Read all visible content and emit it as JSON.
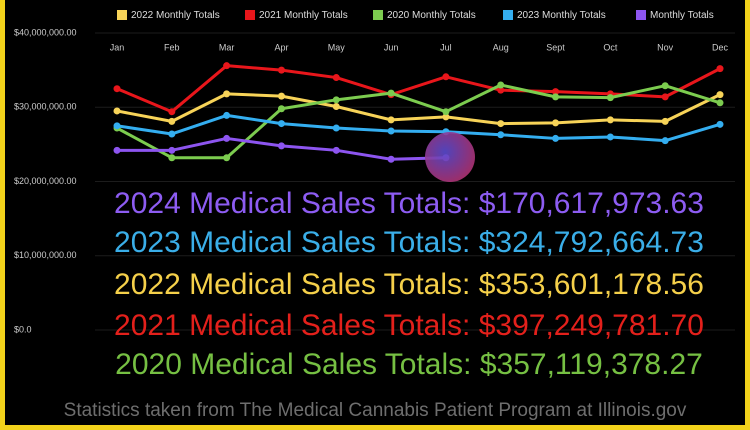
{
  "chart_data": {
    "type": "line",
    "categories": [
      "Jan",
      "Feb",
      "Mar",
      "Apr",
      "May",
      "Jun",
      "Jul",
      "Aug",
      "Sept",
      "Oct",
      "Nov",
      "Dec"
    ],
    "series": [
      {
        "name": "2022 Monthly Totals",
        "color": "#f7d358",
        "values": [
          29500000,
          28100000,
          31800000,
          31500000,
          30100000,
          28300000,
          28700000,
          27800000,
          27900000,
          28300000,
          28100000,
          31700000
        ]
      },
      {
        "name": "2021 Monthly Totals",
        "color": "#e8161b",
        "values": [
          32500000,
          29400000,
          35600000,
          35000000,
          34000000,
          31700000,
          34100000,
          32300000,
          32100000,
          31800000,
          31400000,
          35200000
        ]
      },
      {
        "name": "2020 Monthly Totals",
        "color": "#7ccc4f",
        "values": [
          27200000,
          23200000,
          23200000,
          29800000,
          31000000,
          31900000,
          29400000,
          33000000,
          31400000,
          31300000,
          32900000,
          30600000
        ]
      },
      {
        "name": "2023 Monthly Totals",
        "color": "#34aef0",
        "values": [
          27500000,
          26400000,
          28900000,
          27800000,
          27200000,
          26800000,
          26700000,
          26300000,
          25800000,
          26000000,
          25500000,
          27700000
        ]
      },
      {
        "name": "Monthly Totals",
        "color": "#8d55f0",
        "values": [
          24200000,
          24200000,
          25800000,
          24800000,
          24200000,
          23000000,
          23200000,
          null,
          null,
          null,
          null,
          null
        ]
      }
    ],
    "ylim": [
      0,
      40000000
    ],
    "yticks": [
      {
        "value": 0,
        "label": "$0.0"
      },
      {
        "value": 10000000,
        "label": "$10,000,000.00"
      },
      {
        "value": 20000000,
        "label": "$20,000,000.00"
      },
      {
        "value": 30000000,
        "label": "$30,000,000.00"
      },
      {
        "value": 40000000,
        "label": "$40,000,000.00"
      }
    ],
    "grid": true,
    "legend": "top",
    "annotations": [
      {
        "text": "2024 Medical Sales Totals: $170,617,973.63",
        "color": "#8d5cf2"
      },
      {
        "text": "2023 Medical Sales Totals: $324,792,664.73",
        "color": "#3aaee8"
      },
      {
        "text": "2022 Medical Sales Totals: $353,601,178.56",
        "color": "#f5d04a"
      },
      {
        "text": "2021 Medical Sales Totals: $397,249,781.70",
        "color": "#e3201b"
      },
      {
        "text": "2020 Medical Sales Totals: $357,119,378.27",
        "color": "#76c043"
      }
    ],
    "footer": "Statistics taken from The Medical Cannabis Patient Program at Illinois.gov"
  }
}
